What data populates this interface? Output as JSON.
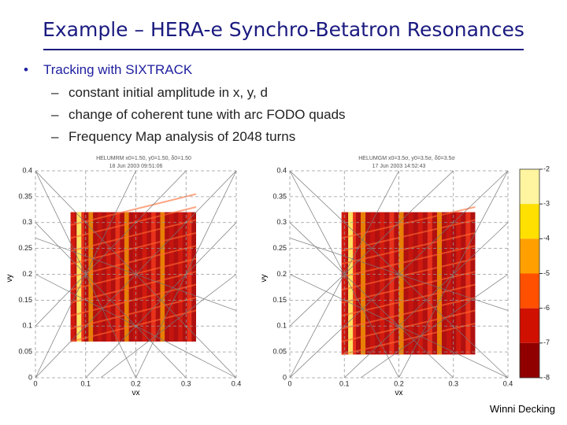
{
  "header": {
    "title": "Example – HERA-e Synchro-Betatron Resonances"
  },
  "bullets": {
    "main": "Tracking with SIXTRACK",
    "sub": [
      "constant initial amplitude in x, y, d",
      "change of coherent tune with arc FODO quads",
      "Frequency Map analysis of 2048 turns"
    ]
  },
  "plots": [
    {
      "caption": "HELUMRM x0=1.50, y0=1.50, δ0=1.50",
      "date": "18 Jun 2003 09:51:06",
      "xlabel": "νx",
      "ylabel": "νy",
      "xticks": [
        0,
        0.1,
        0.2,
        0.3,
        0.4
      ],
      "yticks": [
        0,
        0.05,
        0.1,
        0.15,
        0.2,
        0.25,
        0.3,
        0.35,
        0.4
      ]
    },
    {
      "caption": "HELUMGM x0=3.5σ, y0=3.5σ, δ0=3.5σ",
      "date": "17 Jun 2003 14:52:43",
      "xlabel": "νx",
      "ylabel": "νy",
      "xticks": [
        0,
        0.1,
        0.2,
        0.3,
        0.4
      ],
      "yticks": [
        0,
        0.05,
        0.1,
        0.15,
        0.2,
        0.25,
        0.3,
        0.35,
        0.4
      ]
    }
  ],
  "colorbar": {
    "ticks": [
      -2,
      -3,
      -4,
      -5,
      -6,
      -7,
      -8
    ]
  },
  "footer": {
    "author": "Winni Decking"
  }
}
